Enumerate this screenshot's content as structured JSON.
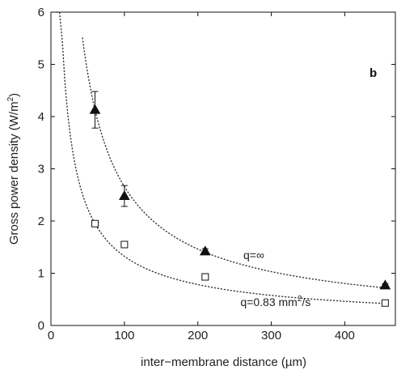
{
  "chart_data": {
    "type": "scatter",
    "panel_label": "b",
    "xlabel": "inter−membrane distance (µm)",
    "ylabel": "Gross power density (W/m",
    "ylabel_sup": "2",
    "ylabel_tail": ")",
    "xlim": [
      0,
      470
    ],
    "ylim": [
      0,
      6
    ],
    "xticks": [
      0,
      100,
      200,
      300,
      400
    ],
    "yticks": [
      0,
      1,
      2,
      3,
      4,
      5,
      6
    ],
    "series": [
      {
        "marker": "triangle-filled",
        "points": [
          {
            "x": 60,
            "y": 4.13,
            "err": 0.35
          },
          {
            "x": 100,
            "y": 2.48,
            "err": 0.2
          },
          {
            "x": 210,
            "y": 1.42,
            "err": 0.05
          },
          {
            "x": 455,
            "y": 0.77,
            "err": 0.03
          }
        ],
        "fit": {
          "style": "dotted",
          "x_start": 43,
          "x_end": 455,
          "y_end": 0.72
        }
      },
      {
        "marker": "square-open",
        "points": [
          {
            "x": 60,
            "y": 1.95,
            "err": 0.05
          },
          {
            "x": 100,
            "y": 1.55,
            "err": 0.0
          },
          {
            "x": 210,
            "y": 0.93,
            "err": 0.06
          },
          {
            "x": 455,
            "y": 0.43,
            "err": 0.0
          }
        ],
        "fit": {
          "style": "dotted",
          "x_start": 8,
          "x_end": 455,
          "y_end": 0.42
        }
      }
    ],
    "annotations": [
      {
        "text": "q=∞",
        "x": 262,
        "y": 1.27
      },
      {
        "text": "q=0.83 mm",
        "sup": "2",
        "tail": "/s",
        "x": 258,
        "y": 0.37
      }
    ]
  }
}
